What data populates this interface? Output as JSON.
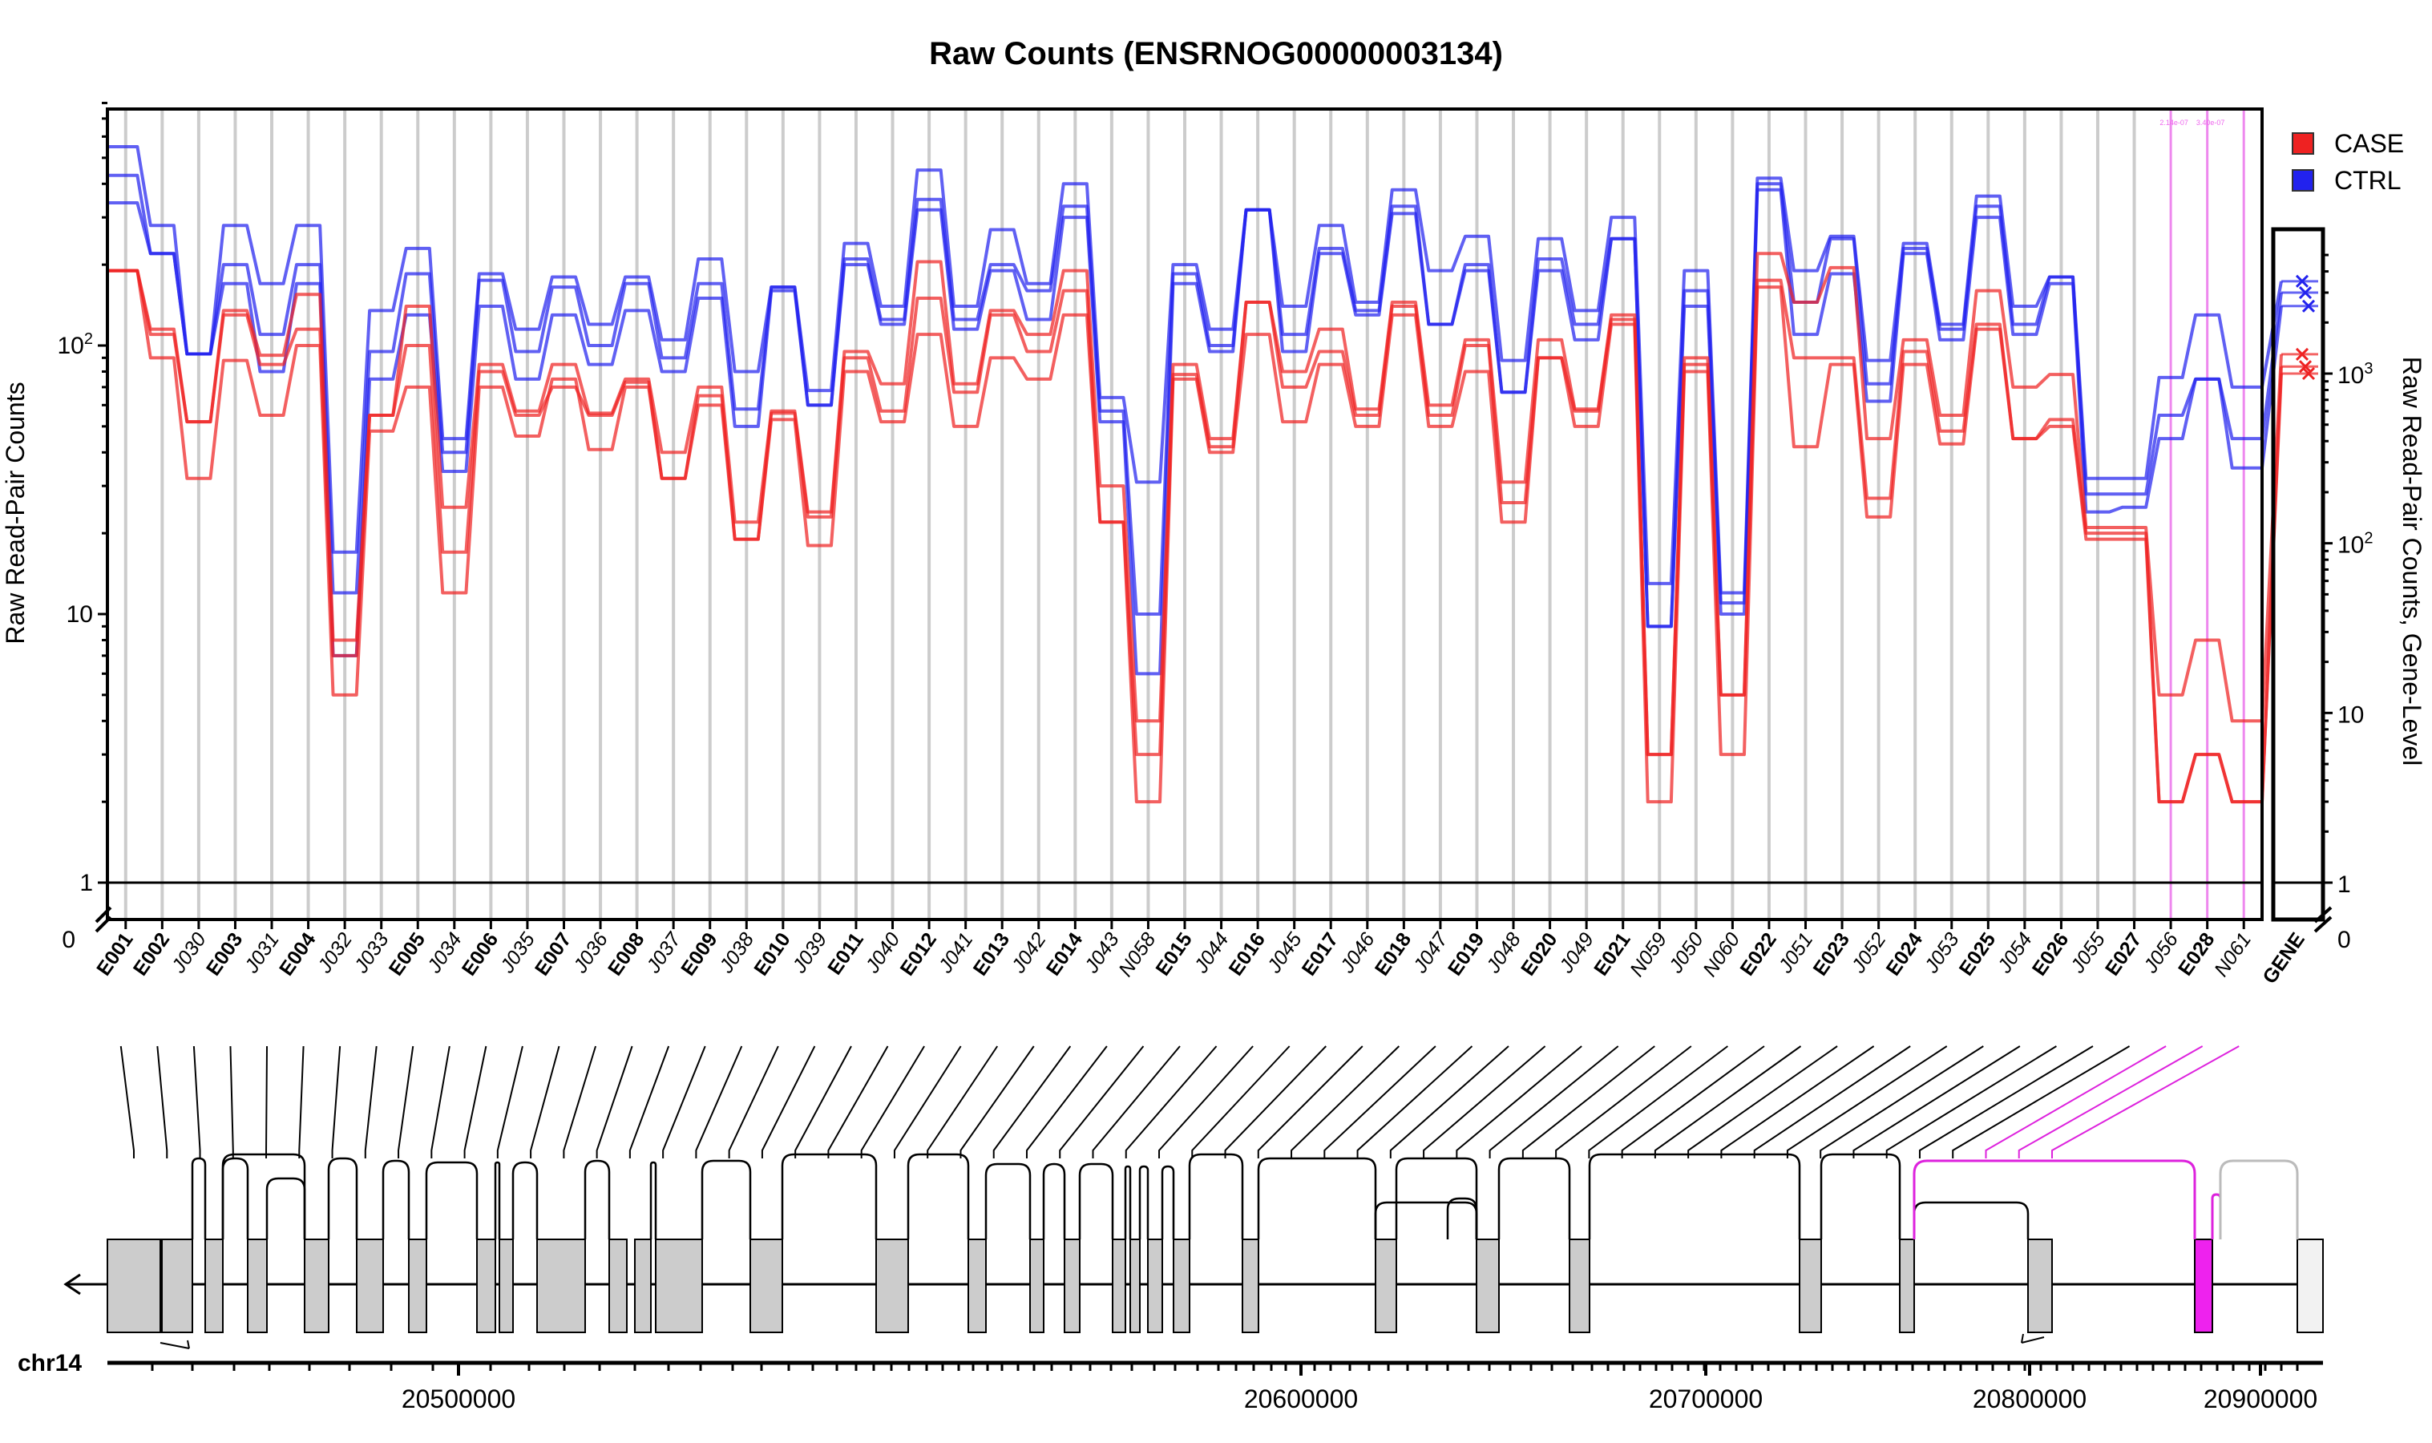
{
  "chart_data": {
    "type": "line",
    "title": "Raw Counts (ENSRNOG00000003134)",
    "ylabel_left": "Raw Read-Pair Counts",
    "ylabel_right": "Raw Read-Pair Counts, Gene-Level",
    "yscale": "log",
    "left_ticks": [
      {
        "v": 1,
        "label": "1"
      },
      {
        "v": 10,
        "label": "10"
      },
      {
        "v": 100,
        "label": "10^2"
      }
    ],
    "left_zero_label": "0",
    "ylim": [
      1,
      800
    ],
    "right_ticks": [
      {
        "v": 1,
        "label": "1"
      },
      {
        "v": 10,
        "label": "10"
      },
      {
        "v": 100,
        "label": "10^2"
      },
      {
        "v": 1000,
        "label": "10^3"
      }
    ],
    "right_zero_label": "0",
    "right_ylim": [
      1,
      5500
    ],
    "legend": [
      {
        "name": "CASE",
        "color": "#ee2222"
      },
      {
        "name": "CTRL",
        "color": "#2222ee"
      }
    ],
    "legend_position": "top-right",
    "features": [
      {
        "id": "E001",
        "kind": "E"
      },
      {
        "id": "E002",
        "kind": "E"
      },
      {
        "id": "J030",
        "kind": "J"
      },
      {
        "id": "E003",
        "kind": "E"
      },
      {
        "id": "J031",
        "kind": "J"
      },
      {
        "id": "E004",
        "kind": "E"
      },
      {
        "id": "J032",
        "kind": "J"
      },
      {
        "id": "J033",
        "kind": "J"
      },
      {
        "id": "E005",
        "kind": "E"
      },
      {
        "id": "J034",
        "kind": "J"
      },
      {
        "id": "E006",
        "kind": "E"
      },
      {
        "id": "J035",
        "kind": "J"
      },
      {
        "id": "E007",
        "kind": "E"
      },
      {
        "id": "J036",
        "kind": "J"
      },
      {
        "id": "E008",
        "kind": "E"
      },
      {
        "id": "J037",
        "kind": "J"
      },
      {
        "id": "E009",
        "kind": "E"
      },
      {
        "id": "J038",
        "kind": "J"
      },
      {
        "id": "E010",
        "kind": "E"
      },
      {
        "id": "J039",
        "kind": "J"
      },
      {
        "id": "E011",
        "kind": "E"
      },
      {
        "id": "J040",
        "kind": "J"
      },
      {
        "id": "E012",
        "kind": "E"
      },
      {
        "id": "J041",
        "kind": "J"
      },
      {
        "id": "E013",
        "kind": "E"
      },
      {
        "id": "J042",
        "kind": "J"
      },
      {
        "id": "E014",
        "kind": "E"
      },
      {
        "id": "J043",
        "kind": "J"
      },
      {
        "id": "N058",
        "kind": "N"
      },
      {
        "id": "E015",
        "kind": "E"
      },
      {
        "id": "J044",
        "kind": "J"
      },
      {
        "id": "E016",
        "kind": "E"
      },
      {
        "id": "J045",
        "kind": "J"
      },
      {
        "id": "E017",
        "kind": "E"
      },
      {
        "id": "J046",
        "kind": "J"
      },
      {
        "id": "E018",
        "kind": "E"
      },
      {
        "id": "J047",
        "kind": "J"
      },
      {
        "id": "E019",
        "kind": "E"
      },
      {
        "id": "J048",
        "kind": "J"
      },
      {
        "id": "E020",
        "kind": "E"
      },
      {
        "id": "J049",
        "kind": "J"
      },
      {
        "id": "E021",
        "kind": "E"
      },
      {
        "id": "N059",
        "kind": "N"
      },
      {
        "id": "J050",
        "kind": "J"
      },
      {
        "id": "N060",
        "kind": "N"
      },
      {
        "id": "E022",
        "kind": "E"
      },
      {
        "id": "J051",
        "kind": "J"
      },
      {
        "id": "E023",
        "kind": "E"
      },
      {
        "id": "J052",
        "kind": "J"
      },
      {
        "id": "E024",
        "kind": "E"
      },
      {
        "id": "J053",
        "kind": "J"
      },
      {
        "id": "E025",
        "kind": "E"
      },
      {
        "id": "J054",
        "kind": "J"
      },
      {
        "id": "E026",
        "kind": "E"
      },
      {
        "id": "J055",
        "kind": "J"
      },
      {
        "id": "E027",
        "kind": "E"
      },
      {
        "id": "J056",
        "kind": "J"
      },
      {
        "id": "E028",
        "kind": "E"
      },
      {
        "id": "N061",
        "kind": "N"
      }
    ],
    "highlighted_features": [
      "J056",
      "E028",
      "N061"
    ],
    "highlight_annotations": [
      "2.14e-07",
      "3.40e-07"
    ],
    "series": [
      {
        "group": "CTRL",
        "values": [
          550,
          280,
          93,
          280,
          170,
          280,
          17,
          135,
          230,
          45,
          185,
          115,
          180,
          120,
          180,
          105,
          210,
          80,
          165,
          68,
          240,
          140,
          450,
          140,
          270,
          170,
          400,
          64,
          31,
          200,
          115,
          320,
          140,
          280,
          145,
          380,
          190,
          255,
          88,
          250,
          135,
          300,
          13,
          190,
          12,
          420,
          190,
          255,
          88,
          240,
          120,
          360,
          140,
          180,
          32,
          32,
          76,
          130,
          70
        ],
        "gene": 3500
      },
      {
        "group": "CTRL",
        "values": [
          430,
          220,
          93,
          200,
          110,
          200,
          12,
          95,
          185,
          40,
          175,
          95,
          165,
          100,
          170,
          90,
          170,
          58,
          165,
          60,
          210,
          125,
          350,
          125,
          200,
          160,
          330,
          57,
          10,
          185,
          100,
          320,
          110,
          230,
          135,
          330,
          120,
          200,
          67,
          210,
          120,
          250,
          9,
          160,
          11,
          400,
          145,
          250,
          72,
          230,
          115,
          330,
          120,
          180,
          28,
          28,
          55,
          75,
          45
        ],
        "gene": 3000
      },
      {
        "group": "CTRL",
        "values": [
          340,
          220,
          93,
          170,
          80,
          170,
          7,
          75,
          130,
          34,
          140,
          75,
          130,
          85,
          135,
          80,
          150,
          50,
          160,
          60,
          200,
          120,
          320,
          115,
          190,
          125,
          300,
          52,
          6,
          170,
          95,
          320,
          95,
          220,
          130,
          310,
          120,
          190,
          67,
          190,
          105,
          250,
          9,
          140,
          10,
          380,
          110,
          185,
          62,
          220,
          105,
          300,
          110,
          170,
          24,
          25,
          45,
          75,
          35
        ],
        "gene": 2500
      },
      {
        "group": "CASE",
        "values": [
          190,
          115,
          52,
          135,
          92,
          155,
          8,
          55,
          140,
          25,
          85,
          57,
          85,
          56,
          75,
          40,
          70,
          22,
          57,
          24,
          95,
          72,
          205,
          72,
          135,
          110,
          190,
          30,
          4,
          85,
          45,
          145,
          80,
          115,
          58,
          145,
          60,
          105,
          31,
          105,
          58,
          130,
          3,
          90,
          5,
          220,
          145,
          195,
          45,
          105,
          55,
          160,
          70,
          78,
          21,
          21,
          5,
          8,
          4
        ],
        "gene": 1300
      },
      {
        "group": "CASE",
        "values": [
          190,
          110,
          52,
          130,
          85,
          115,
          7,
          55,
          100,
          17,
          80,
          55,
          70,
          55,
          73,
          32,
          65,
          19,
          56,
          23,
          90,
          57,
          150,
          67,
          130,
          95,
          160,
          22,
          3,
          78,
          42,
          145,
          70,
          95,
          55,
          140,
          55,
          100,
          26,
          90,
          57,
          125,
          3,
          85,
          5,
          175,
          90,
          90,
          27,
          95,
          48,
          120,
          45,
          53,
          20,
          20,
          2,
          3,
          2
        ],
        "gene": 1100
      },
      {
        "group": "CASE",
        "values": [
          190,
          90,
          32,
          88,
          55,
          100,
          5,
          48,
          70,
          12,
          70,
          46,
          75,
          41,
          70,
          32,
          60,
          19,
          53,
          18,
          80,
          52,
          110,
          50,
          90,
          75,
          130,
          22,
          2,
          75,
          40,
          110,
          52,
          85,
          50,
          130,
          50,
          80,
          22,
          90,
          50,
          120,
          2,
          80,
          3,
          165,
          42,
          85,
          23,
          85,
          43,
          115,
          45,
          50,
          19,
          19,
          2,
          3,
          2
        ],
        "gene": 1000
      }
    ],
    "genomic_axis": {
      "chromosome": "chr14",
      "ticks": [
        {
          "v": 20500000,
          "label": "20500000"
        },
        {
          "v": 20600000,
          "label": "20600000"
        },
        {
          "v": 20700000,
          "label": "20700000"
        },
        {
          "v": 20800000,
          "label": "20800000"
        },
        {
          "v": 20900000,
          "label": "20900000"
        }
      ]
    },
    "gene_column_label": "GENE"
  }
}
